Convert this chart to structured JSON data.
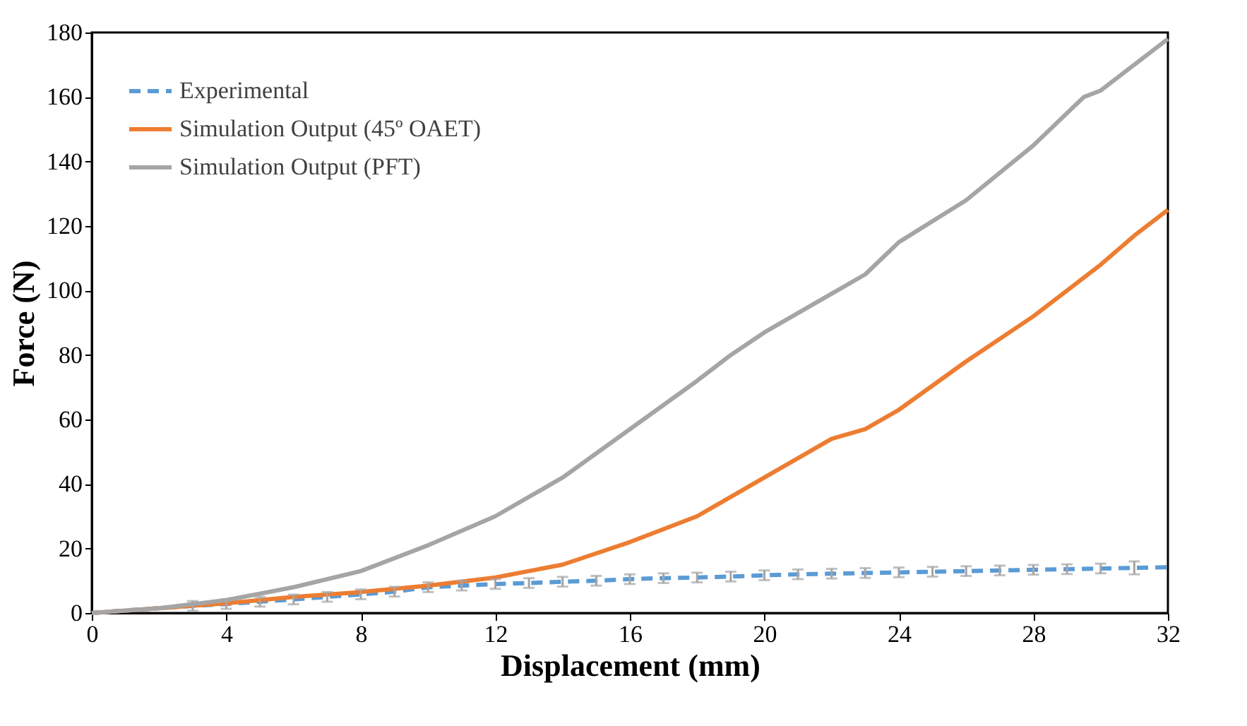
{
  "chart_data": {
    "type": "line",
    "xlabel": "Displacement (mm)",
    "ylabel": "Force (N)",
    "xlim": [
      0,
      32
    ],
    "ylim": [
      0,
      180
    ],
    "xticks": [
      0,
      4,
      8,
      12,
      16,
      20,
      24,
      28,
      32
    ],
    "yticks": [
      0,
      20,
      40,
      60,
      80,
      100,
      120,
      140,
      160,
      180
    ],
    "grid": false,
    "legend": "top left",
    "marker": "none",
    "series": [
      {
        "name": "Experimental",
        "color": "#5b9bd5",
        "line_style": "dashed",
        "x": [
          0,
          1,
          2,
          3,
          4,
          5,
          6,
          7,
          8,
          9,
          10,
          11,
          12,
          13,
          14,
          15,
          16,
          17,
          18,
          19,
          20,
          21,
          22,
          23,
          24,
          25,
          26,
          27,
          28,
          29,
          30,
          31,
          32
        ],
        "values": [
          0,
          0.8,
          1.5,
          2.2,
          2.8,
          3.5,
          4.2,
          5,
          5.8,
          6.6,
          8,
          8.5,
          9,
          9.3,
          9.7,
          10,
          10.5,
          10.8,
          11,
          11.3,
          11.7,
          12,
          12.2,
          12.4,
          12.6,
          12.8,
          13,
          13.2,
          13.4,
          13.6,
          13.8,
          14,
          14.2
        ],
        "errors": [
          null,
          null,
          null,
          1.5,
          1.5,
          1.5,
          1.5,
          1.5,
          1.5,
          1.5,
          1.5,
          1.5,
          1.5,
          1.5,
          1.5,
          1.5,
          1.5,
          1.5,
          1.5,
          1.5,
          1.5,
          1.5,
          1.5,
          1.5,
          1.5,
          1.5,
          1.5,
          1.5,
          1.5,
          1.5,
          1.5,
          2,
          null
        ]
      },
      {
        "name": "Simulation Output (45º OAET)",
        "color": "#ed7d31",
        "line_style": "solid",
        "x": [
          0,
          2,
          4,
          6,
          8,
          10,
          12,
          14,
          16,
          18,
          19.5,
          20,
          22,
          23,
          24,
          26,
          28,
          30,
          31,
          32
        ],
        "values": [
          0,
          1.5,
          3,
          5,
          6.5,
          8.5,
          11,
          15,
          22,
          30,
          39,
          42,
          54,
          57,
          63,
          78,
          92,
          108,
          117,
          125
        ]
      },
      {
        "name": "Simulation Output (PFT)",
        "color": "#a5a5a5",
        "line_style": "solid",
        "x": [
          0,
          2,
          4,
          6,
          8,
          10,
          12,
          14,
          16,
          18,
          19,
          20,
          22,
          23,
          24,
          26,
          28,
          29.5,
          30,
          32
        ],
        "values": [
          0,
          1.5,
          4,
          8,
          13,
          21,
          30,
          42,
          57,
          72,
          80,
          87,
          99,
          105,
          115,
          128,
          145,
          160,
          162,
          178
        ]
      }
    ]
  }
}
